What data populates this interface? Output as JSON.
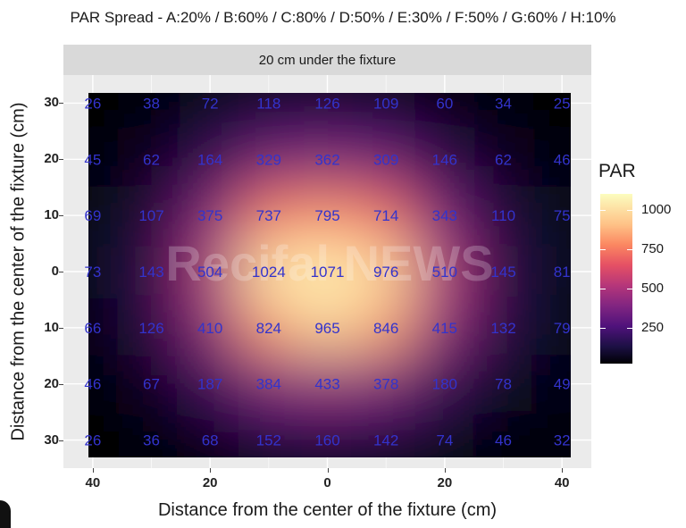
{
  "chart_data": {
    "type": "heatmap",
    "title": "PAR Spread - A:20% / B:60% / C:80% / D:50% / E:30% / F:50% / G:60% / H:10%",
    "facet_label": "20 cm under the fixture",
    "xlabel": "Distance from the center of the fixture (cm)",
    "ylabel": "Distance from the center of the fixture (cm)",
    "x": [
      -40,
      -30,
      -20,
      -10,
      0,
      10,
      20,
      30,
      40
    ],
    "y": [
      30,
      20,
      10,
      0,
      -10,
      -20,
      -30
    ],
    "xlim": [
      -45,
      45
    ],
    "ylim": [
      -35,
      35
    ],
    "x_ticks": [
      -40,
      -20,
      0,
      20,
      40
    ],
    "x_tick_labels": [
      "40",
      "20",
      "0",
      "20",
      "40"
    ],
    "y_ticks": [
      30,
      20,
      10,
      0,
      -10,
      -20,
      -30
    ],
    "y_tick_labels": [
      "30",
      "20",
      "10",
      "0",
      "10",
      "20",
      "30"
    ],
    "values": [
      [
        26,
        38,
        72,
        118,
        126,
        109,
        60,
        34,
        25
      ],
      [
        45,
        62,
        164,
        329,
        362,
        309,
        146,
        62,
        46
      ],
      [
        69,
        107,
        375,
        737,
        795,
        714,
        343,
        110,
        75
      ],
      [
        73,
        143,
        504,
        1024,
        1071,
        976,
        510,
        145,
        81
      ],
      [
        66,
        126,
        410,
        824,
        965,
        846,
        415,
        132,
        79
      ],
      [
        46,
        67,
        187,
        384,
        433,
        378,
        180,
        78,
        49
      ],
      [
        26,
        36,
        68,
        152,
        160,
        142,
        74,
        46,
        32
      ]
    ],
    "colorscale": "magma",
    "value_range": [
      25,
      1100
    ],
    "legend": {
      "title": "PAR",
      "placement": "right",
      "ticks": [
        250,
        500,
        750,
        1000
      ],
      "tick_labels": [
        "250",
        "500",
        "750",
        "1000"
      ]
    },
    "label_color": "#3333cc",
    "grid": true,
    "watermark": "Recifal NEWS"
  }
}
